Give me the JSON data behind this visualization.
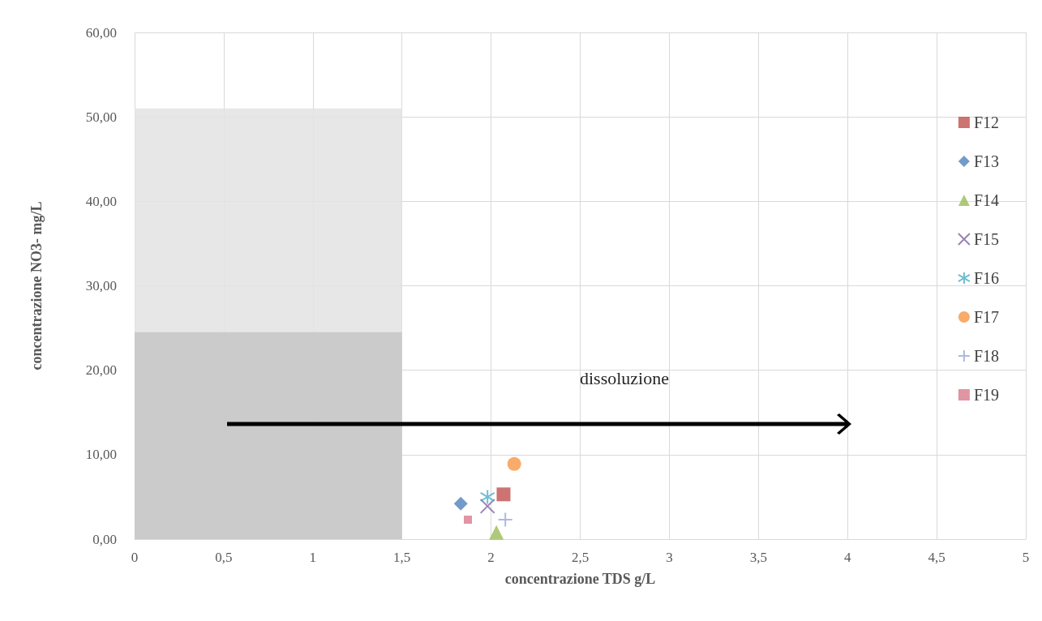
{
  "chart_data": {
    "type": "scatter",
    "xlabel": "concentrazione TDS g/L",
    "ylabel": "concentrazione NO3- mg/L",
    "xlim": [
      0,
      5
    ],
    "ylim": [
      0,
      60
    ],
    "xticks": [
      0,
      {
        "value": 0.5,
        "label": "0,5"
      },
      1,
      {
        "value": 1.5,
        "label": "1,5"
      },
      2,
      {
        "value": 2.5,
        "label": "2,5"
      },
      3,
      {
        "value": 3.5,
        "label": "3,5"
      },
      4,
      {
        "value": 4.5,
        "label": "4,5"
      },
      5
    ],
    "yticks": [
      {
        "value": 0,
        "label": "0,00"
      },
      {
        "value": 10,
        "label": "10,00"
      },
      {
        "value": 20,
        "label": "20,00"
      },
      {
        "value": 30,
        "label": "30,00"
      },
      {
        "value": 40,
        "label": "40,00"
      },
      {
        "value": 50,
        "label": "50,00"
      },
      {
        "value": 60,
        "label": "60,00"
      }
    ],
    "grid": true,
    "legend": "right",
    "series": [
      {
        "name": "F12",
        "color": "#c0504d",
        "marker": "square",
        "x": [
          2.07
        ],
        "values": [
          5.3
        ]
      },
      {
        "name": "F13",
        "color": "#4f81bd",
        "marker": "diamond",
        "x": [
          1.83
        ],
        "values": [
          4.2
        ]
      },
      {
        "name": "F14",
        "color": "#9bbb59",
        "marker": "triangle",
        "x": [
          2.03
        ],
        "values": [
          0.8
        ]
      },
      {
        "name": "F15",
        "color": "#8064a2",
        "marker": "x",
        "x": [
          1.98
        ],
        "values": [
          3.9
        ]
      },
      {
        "name": "F16",
        "color": "#4bacc6",
        "marker": "cross",
        "x": [
          1.98
        ],
        "values": [
          5.0
        ]
      },
      {
        "name": "F17",
        "color": "#f79646",
        "marker": "circle",
        "x": [
          2.13
        ],
        "values": [
          8.9
        ]
      },
      {
        "name": "F18",
        "color": "#9ba6d8",
        "marker": "cross",
        "x": [
          2.08
        ],
        "values": [
          2.3
        ]
      },
      {
        "name": "F19",
        "color": "#d9798b",
        "marker": "square",
        "x": [
          1.87
        ],
        "values": [
          2.3
        ]
      },
      {
        "type": "area",
        "color": "#e3e3e3",
        "x": [
          0,
          1.5
        ],
        "values": [
          51,
          51
        ]
      },
      {
        "type": "area",
        "color": "#c6c6c6",
        "x": [
          0,
          1.5
        ],
        "values": [
          24.5,
          24.5
        ]
      }
    ],
    "annotations": [
      "dissoluzione"
    ]
  }
}
